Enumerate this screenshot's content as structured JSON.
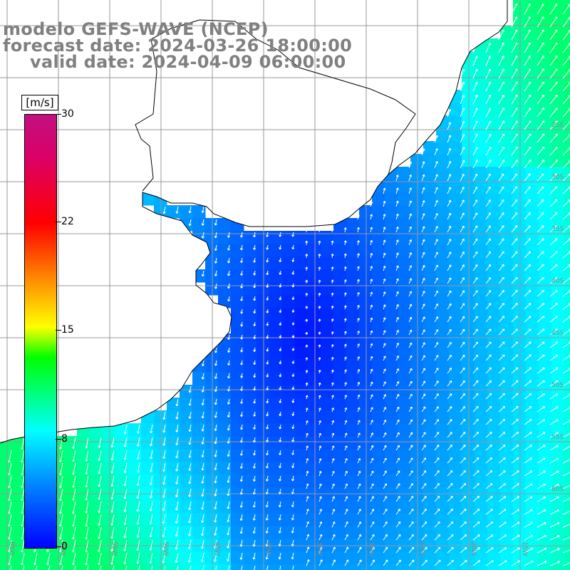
{
  "titles": {
    "line1": "modelo GEFS-WAVE (NCEP)",
    "line2": "forecast date: 2024-03-26 18:00:00",
    "line3": "valid date: 2024-04-09 06:00:00"
  },
  "colorbar": {
    "unit": "[m/s]",
    "labels": [
      "30",
      "22",
      "15",
      "8",
      "0"
    ],
    "label_values": [
      30,
      22,
      15,
      8,
      0
    ],
    "min": 0,
    "max": 30,
    "colors": [
      "#0000ff",
      "#0080ff",
      "#00ffff",
      "#00ff00",
      "#ffff00",
      "#ff8000",
      "#ff0000",
      "#c0107f"
    ]
  },
  "map": {
    "land_color": "#ffffff",
    "grid_color": "#999999",
    "coast_color": "#000000",
    "arrow_color": "#ffffff",
    "lat_labels": [
      "25S",
      "30S",
      "35S",
      "40S",
      "45S",
      "50S",
      "55S",
      "60S"
    ],
    "lon_labels": [
      "65W",
      "60W",
      "55W",
      "50W",
      "45W",
      "40W",
      "35W",
      "30W",
      "25W",
      "20W",
      "15W"
    ]
  },
  "chart_data": {
    "type": "heatmap",
    "variable": "wind speed",
    "unit": "[m/s]",
    "colorscale_range": [
      0,
      30
    ],
    "description_values": {
      "calm_core_min": 0.5,
      "north_east_region": 5.5,
      "south_west_region": 9.5
    }
  }
}
